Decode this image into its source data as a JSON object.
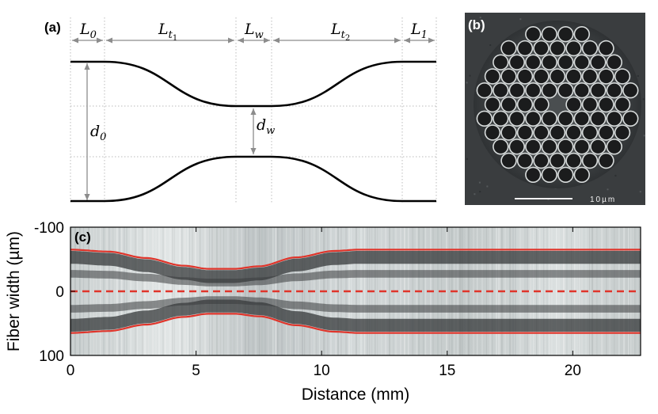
{
  "panel_a": {
    "label": "(a)",
    "segments": [
      {
        "base": "L",
        "sub": "0",
        "subsub": ""
      },
      {
        "base": "L",
        "sub": "t",
        "subsub": "1"
      },
      {
        "base": "L",
        "sub": "w",
        "subsub": ""
      },
      {
        "base": "L",
        "sub": "t",
        "subsub": "2"
      },
      {
        "base": "L",
        "sub": "1",
        "subsub": ""
      }
    ],
    "d0": {
      "base": "d",
      "sub": "0"
    },
    "dw": {
      "base": "d",
      "sub": "w"
    }
  },
  "panel_b": {
    "label": "(b)",
    "scale_text": "10µm"
  },
  "panel_c": {
    "label": "(c)",
    "xlabel": "Distance (mm)",
    "ylabel": "Fiber width (µm)"
  },
  "colors": {
    "profile": "#000000",
    "dimension": "#8c8c8c",
    "red": "#e0352b",
    "sem_bg": "#3c3f40"
  },
  "chart_data": {
    "type": "line",
    "title": "",
    "xlabel": "Distance (mm)",
    "ylabel": "Fiber width (µm)",
    "xlim": [
      0,
      22.7
    ],
    "ylim": [
      100,
      -100
    ],
    "xticks": [
      0,
      5,
      10,
      15,
      20
    ],
    "yticks": [
      -100,
      0,
      100
    ],
    "series": [
      {
        "name": "upper edge fit",
        "style": "solid",
        "x": [
          0,
          1.5,
          3,
          4.5,
          5.5,
          6.5,
          7.5,
          9,
          10.5,
          11.5,
          15,
          20,
          22.7
        ],
        "y": [
          -65,
          -62,
          -52,
          -40,
          -35,
          -35,
          -39,
          -53,
          -63,
          -65,
          -65,
          -65,
          -65
        ]
      },
      {
        "name": "lower edge fit",
        "style": "solid",
        "x": [
          0,
          1.5,
          3,
          4.5,
          5.5,
          6.5,
          7.5,
          9,
          10.5,
          11.5,
          15,
          20,
          22.7
        ],
        "y": [
          65,
          62,
          52,
          40,
          35,
          35,
          39,
          53,
          63,
          65,
          65,
          65,
          65
        ]
      },
      {
        "name": "center axis",
        "style": "dashed",
        "x": [
          0,
          22.7
        ],
        "y": [
          0,
          0
        ]
      }
    ]
  }
}
